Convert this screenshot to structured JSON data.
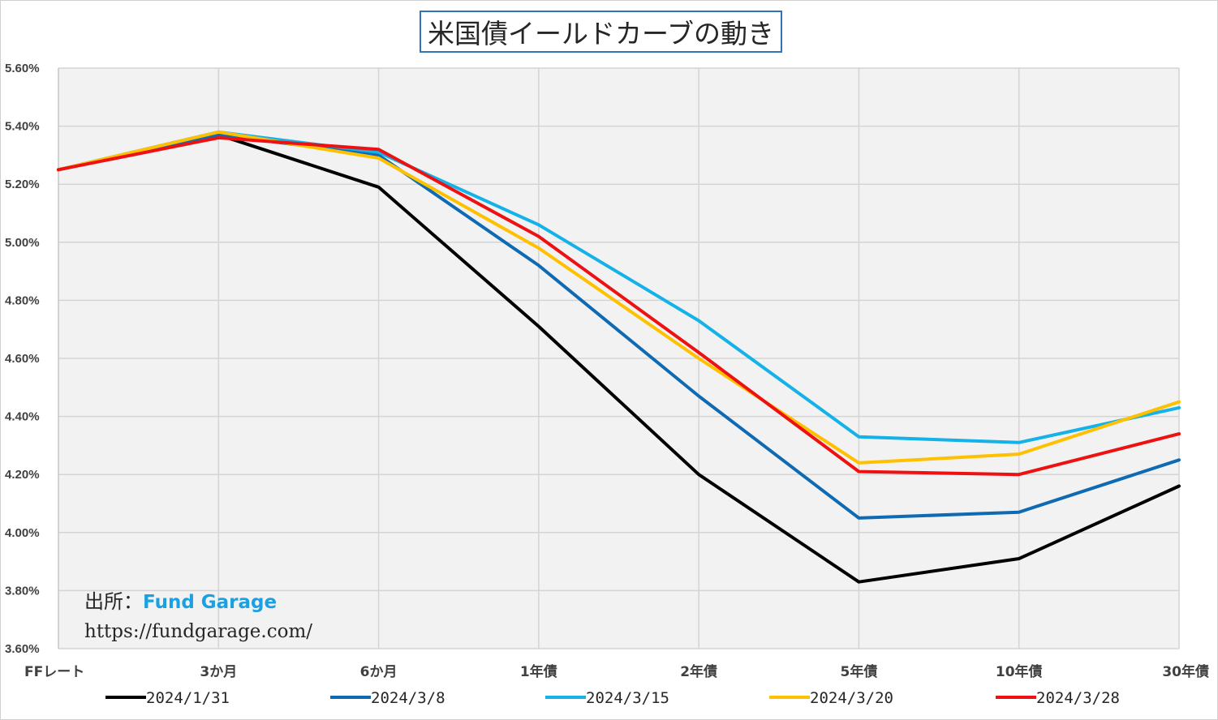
{
  "chart_data": {
    "type": "line",
    "title": "米国債イールドカーブの動き",
    "categories": [
      "FFレート",
      "3か月",
      "6か月",
      "1年債",
      "2年債",
      "5年債",
      "10年債",
      "30年債"
    ],
    "ylim": [
      3.6,
      5.6
    ],
    "yticks": [
      3.6,
      3.8,
      4.0,
      4.2,
      4.4,
      4.6,
      4.8,
      5.0,
      5.2,
      5.4,
      5.6
    ],
    "ytick_labels": [
      "3.60%",
      "3.80%",
      "4.00%",
      "4.20%",
      "4.40%",
      "4.60%",
      "4.80%",
      "5.00%",
      "5.20%",
      "5.40%",
      "5.60%"
    ],
    "grid": true,
    "legend_position": "bottom",
    "series": [
      {
        "name": "2024/1/31",
        "color": "#000000",
        "values": [
          5.25,
          5.37,
          5.19,
          4.71,
          4.2,
          3.83,
          3.91,
          4.16
        ]
      },
      {
        "name": "2024/3/8",
        "color": "#0f6ab4",
        "values": [
          5.25,
          5.37,
          5.3,
          4.92,
          4.47,
          4.05,
          4.07,
          4.25
        ]
      },
      {
        "name": "2024/3/15",
        "color": "#14b2e8",
        "values": [
          5.25,
          5.38,
          5.31,
          5.06,
          4.73,
          4.33,
          4.31,
          4.43
        ]
      },
      {
        "name": "2024/3/20",
        "color": "#ffc000",
        "values": [
          5.25,
          5.38,
          5.29,
          4.98,
          4.6,
          4.24,
          4.27,
          4.45
        ]
      },
      {
        "name": "2024/3/28",
        "color": "#ee1111",
        "values": [
          5.25,
          5.36,
          5.32,
          5.02,
          4.62,
          4.21,
          4.2,
          4.34
        ]
      }
    ]
  },
  "source": {
    "label": "出所：",
    "brand": "Fund Garage",
    "url": "https://fundgarage.com/"
  }
}
